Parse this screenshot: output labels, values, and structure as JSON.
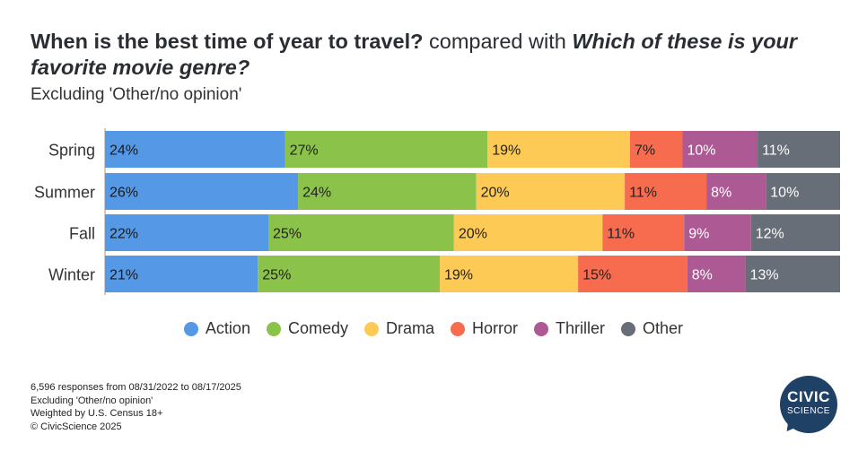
{
  "header": {
    "title_part1": "When is the best time of year to travel?",
    "title_part2": "compared with",
    "title_part3": "Which of these is your favorite movie genre?",
    "subtitle": "Excluding 'Other/no opinion'"
  },
  "chart_data": {
    "type": "bar",
    "orientation": "horizontal",
    "stacked": true,
    "normalized": true,
    "categories": [
      "Spring",
      "Summer",
      "Fall",
      "Winter"
    ],
    "series": [
      {
        "name": "Action",
        "color": "#5599e6",
        "values": [
          24,
          26,
          22,
          21
        ],
        "labels": [
          "24%",
          "26%",
          "22%",
          "21%"
        ]
      },
      {
        "name": "Comedy",
        "color": "#8bc34a",
        "values": [
          27,
          24,
          25,
          25
        ],
        "labels": [
          "27%",
          "24%",
          "25%",
          "25%"
        ]
      },
      {
        "name": "Drama",
        "color": "#fdcb55",
        "values": [
          19,
          20,
          20,
          19
        ],
        "labels": [
          "19%",
          "20%",
          "20%",
          "19%"
        ]
      },
      {
        "name": "Horror",
        "color": "#f76b4f",
        "values": [
          7,
          11,
          11,
          15
        ],
        "labels": [
          "7%",
          "11%",
          "11%",
          "15%"
        ]
      },
      {
        "name": "Thriller",
        "color": "#ad5a94",
        "values": [
          10,
          8,
          9,
          8
        ],
        "labels": [
          "10%",
          "8%",
          "9%",
          "8%"
        ]
      },
      {
        "name": "Other",
        "color": "#676e78",
        "values": [
          11,
          10,
          12,
          13
        ],
        "labels": [
          "11%",
          "10%",
          "12%",
          "13%"
        ]
      }
    ],
    "legend_position": "bottom",
    "grid": false
  },
  "footer": {
    "notes": [
      "6,596 responses from 08/31/2022 to 08/17/2025",
      "Excluding 'Other/no opinion'",
      "Weighted by U.S. Census 18+",
      "© CivicScience 2025"
    ],
    "logo_line1": "CIVIC",
    "logo_line2": "SCIENCE"
  }
}
